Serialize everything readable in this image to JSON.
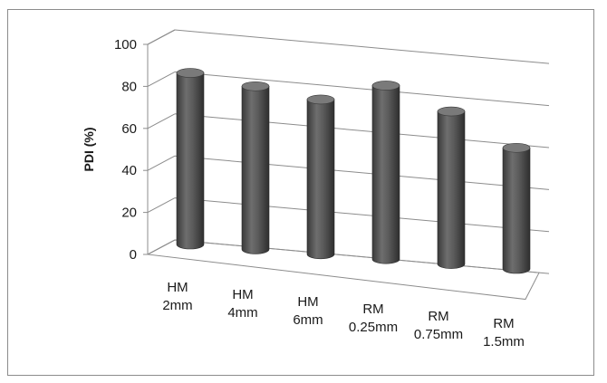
{
  "chart_data": {
    "type": "bar",
    "style": "3d-cylinder",
    "title": "",
    "xlabel": "",
    "ylabel": "PDI (%)",
    "ylim": [
      0,
      100
    ],
    "yticks": [
      0,
      20,
      40,
      60,
      80,
      100
    ],
    "grid": true,
    "legend": "none",
    "categories": [
      [
        "HM",
        "2mm"
      ],
      [
        "HM",
        "4mm"
      ],
      [
        "HM",
        "6mm"
      ],
      [
        "RM",
        "0.25mm"
      ],
      [
        "RM",
        "0.75mm"
      ],
      [
        "RM",
        "1.5mm"
      ]
    ],
    "values": [
      92,
      88,
      84,
      93,
      83,
      68
    ],
    "colors": {
      "bar": "#595959",
      "grid": "#8c8c8c"
    }
  }
}
